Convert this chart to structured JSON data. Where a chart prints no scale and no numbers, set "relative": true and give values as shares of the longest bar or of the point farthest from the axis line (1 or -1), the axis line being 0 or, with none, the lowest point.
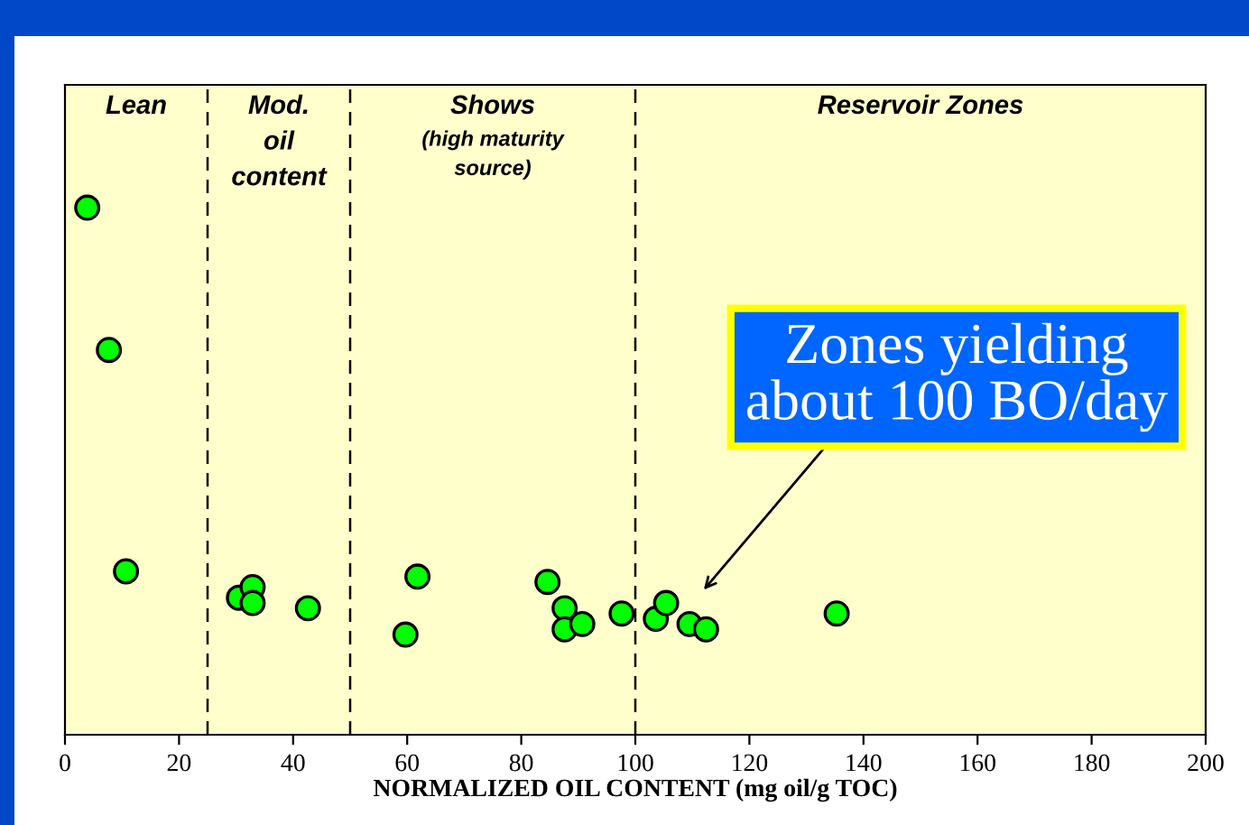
{
  "chart_data": {
    "type": "scatter",
    "relative": true,
    "xlabel": "NORMALIZED OIL CONTENT (mg oil/g TOC)",
    "xlim": [
      0,
      200
    ],
    "xticks": [
      0,
      20,
      40,
      60,
      80,
      100,
      120,
      140,
      160,
      180,
      200
    ],
    "marker": "circle",
    "grid": false,
    "legend": false,
    "series": [
      {
        "color": "#00ff00",
        "x": [
          3.9,
          7.7,
          10.7,
          30.5,
          32.9,
          32.9,
          42.6,
          59.7,
          61.8,
          84.6,
          87.6,
          87.6,
          90.7,
          97.6,
          103.6,
          105.4,
          109.5,
          112.4,
          135.3
        ],
        "values": [
          1,
          0.73,
          0.31,
          0.26,
          0.28,
          0.25,
          0.24,
          0.19,
          0.3,
          0.29,
          0.24,
          0.2,
          0.21,
          0.23,
          0.22,
          0.25,
          0.21,
          0.2,
          0.23
        ]
      }
    ],
    "ref_lines": [
      {
        "axis": "x",
        "value": 25,
        "line_style": "dashed",
        "color": "#000000"
      },
      {
        "axis": "x",
        "value": 50,
        "line_style": "dashed",
        "color": "#000000"
      },
      {
        "axis": "x",
        "value": 100,
        "line_style": "dashed",
        "color": "#000000"
      }
    ],
    "annotations": [
      "Lean",
      "Mod.\noil\ncontent",
      "Shows\n(high maturity\nsource)",
      "Reservoir Zones",
      "Zones yielding\nabout 100 BO/day"
    ]
  }
}
